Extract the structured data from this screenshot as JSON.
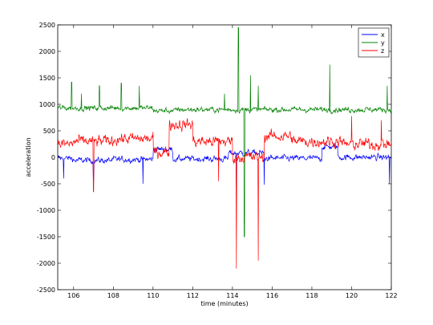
{
  "chart_data": {
    "type": "line",
    "title": "",
    "xlabel": "time (minutes)",
    "ylabel": "acceleration",
    "xlim": [
      105.2,
      122
    ],
    "ylim": [
      -2500,
      2500
    ],
    "xticks": [
      "106",
      "108",
      "110",
      "112",
      "114",
      "116",
      "118",
      "120",
      "122"
    ],
    "yticks": [
      "2500",
      "2000",
      "1500",
      "1000",
      "500",
      "0",
      "-500",
      "-1000",
      "-1500",
      "-2000",
      "-2500"
    ],
    "grid": false,
    "legend_position": "top-right",
    "series": [
      {
        "name": "x",
        "color": "#0000ff",
        "baseline": 0,
        "noise": 80,
        "segments": [
          {
            "x0": 105.2,
            "x1": 106.0,
            "level": -20
          },
          {
            "x0": 106.0,
            "x1": 108.0,
            "level": -60
          },
          {
            "x0": 108.0,
            "x1": 110.0,
            "level": -40
          },
          {
            "x0": 110.0,
            "x1": 111.0,
            "level": 150
          },
          {
            "x0": 111.0,
            "x1": 113.8,
            "level": -30
          },
          {
            "x0": 113.8,
            "x1": 115.6,
            "level": 80
          },
          {
            "x0": 115.6,
            "x1": 118.5,
            "level": -20
          },
          {
            "x0": 118.5,
            "x1": 119.3,
            "level": 200
          },
          {
            "x0": 119.3,
            "x1": 122.0,
            "level": 0
          }
        ],
        "spikes": [
          [
            105.5,
            -400
          ],
          [
            107.0,
            -450
          ],
          [
            109.5,
            -500
          ],
          [
            114.2,
            -550
          ],
          [
            115.6,
            -520
          ],
          [
            121.9,
            -500
          ]
        ]
      },
      {
        "name": "y",
        "color": "#008000",
        "baseline": 900,
        "noise": 70,
        "segments": [
          {
            "x0": 105.2,
            "x1": 110.0,
            "level": 930
          },
          {
            "x0": 110.0,
            "x1": 111.2,
            "level": 880
          },
          {
            "x0": 111.2,
            "x1": 113.9,
            "level": 900
          },
          {
            "x0": 113.9,
            "x1": 115.5,
            "level": 900
          },
          {
            "x0": 115.5,
            "x1": 122.0,
            "level": 900
          }
        ],
        "spikes": [
          [
            105.9,
            1420
          ],
          [
            106.4,
            1200
          ],
          [
            107.3,
            1350
          ],
          [
            108.4,
            1400
          ],
          [
            109.3,
            1350
          ],
          [
            113.6,
            1200
          ],
          [
            114.3,
            2450
          ],
          [
            114.6,
            -1500
          ],
          [
            114.9,
            1550
          ],
          [
            115.3,
            1350
          ],
          [
            118.9,
            1750
          ],
          [
            121.8,
            1350
          ]
        ]
      },
      {
        "name": "z",
        "color": "#ff0000",
        "baseline": 200,
        "noise": 150,
        "segments": [
          {
            "x0": 105.2,
            "x1": 106.0,
            "level": 250
          },
          {
            "x0": 106.0,
            "x1": 108.0,
            "level": 300
          },
          {
            "x0": 108.0,
            "x1": 110.0,
            "level": 350
          },
          {
            "x0": 110.0,
            "x1": 110.8,
            "level": 100
          },
          {
            "x0": 110.8,
            "x1": 112.0,
            "level": 620
          },
          {
            "x0": 112.0,
            "x1": 114.0,
            "level": 300
          },
          {
            "x0": 114.0,
            "x1": 115.6,
            "level": 0
          },
          {
            "x0": 115.6,
            "x1": 117.0,
            "level": 400
          },
          {
            "x0": 117.0,
            "x1": 119.5,
            "level": 300
          },
          {
            "x0": 119.5,
            "x1": 122.0,
            "level": 250
          }
        ],
        "spikes": [
          [
            107.0,
            -650
          ],
          [
            113.3,
            -450
          ],
          [
            114.2,
            -2100
          ],
          [
            115.3,
            -1950
          ],
          [
            120.0,
            780
          ],
          [
            121.5,
            700
          ]
        ]
      }
    ]
  }
}
